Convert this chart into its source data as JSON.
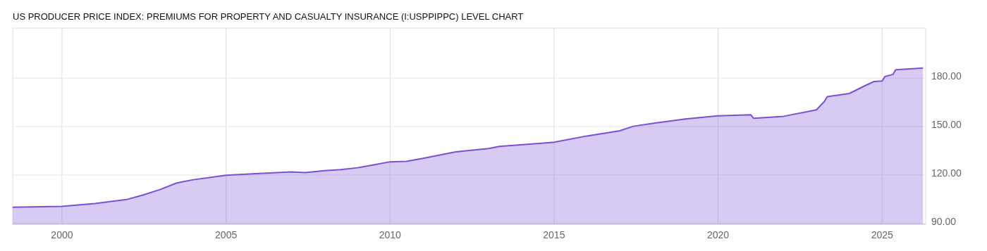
{
  "chart_data": {
    "type": "area",
    "title": "US PRODUCER PRICE INDEX: PREMIUMS FOR PROPERTY AND CASUALTY INSURANCE (I:USPPIPPC) LEVEL CHART",
    "x": [
      "1998-07",
      "2000-01",
      "2001-01",
      "2002-01",
      "2002-07",
      "2003-01",
      "2003-07",
      "2004-01",
      "2005-01",
      "2006-01",
      "2007-01",
      "2007-06",
      "2008-01",
      "2008-07",
      "2009-01",
      "2009-07",
      "2010-01",
      "2010-07",
      "2011-01",
      "2012-01",
      "2013-01",
      "2013-05",
      "2015-01",
      "2016-01",
      "2017-01",
      "2017-06",
      "2018-01",
      "2019-01",
      "2020-01",
      "2021-01",
      "2021-02",
      "2022-01",
      "2023-01",
      "2023-04",
      "2023-05",
      "2024-01",
      "2024-07",
      "2024-10",
      "2025-01",
      "2025-02",
      "2025-05",
      "2025-06",
      "2026-04"
    ],
    "series": [
      {
        "color": "#7b4fd6",
        "values": [
          100.1,
          100.6,
          102.3,
          105,
          107.8,
          111.1,
          115.1,
          117.1,
          119.9,
          121,
          121.9,
          121.5,
          122.7,
          123.4,
          124.5,
          126.3,
          128.2,
          128.5,
          130.3,
          134.4,
          136.4,
          137.7,
          140.3,
          144.2,
          147.4,
          150.2,
          152,
          154.7,
          156.7,
          157.3,
          155.1,
          156.4,
          160.4,
          165.7,
          168.5,
          170.5,
          175.5,
          177.9,
          178.2,
          181,
          182.3,
          185.2,
          186.3
        ]
      }
    ],
    "xlim": [
      "1998-07",
      "2026-05"
    ],
    "xticks": [
      {
        "value": "2000-01",
        "label": "2000"
      },
      {
        "value": "2005-01",
        "label": "2005"
      },
      {
        "value": "2010-01",
        "label": "2010"
      },
      {
        "value": "2015-01",
        "label": "2015"
      },
      {
        "value": "2020-01",
        "label": "2020"
      },
      {
        "value": "2025-01",
        "label": "2025"
      }
    ],
    "ylim": [
      89.5,
      211
    ],
    "yticks": [
      {
        "value": 90,
        "label": "90.00"
      },
      {
        "value": 120,
        "label": "120.00"
      },
      {
        "value": 150,
        "label": "150.00"
      },
      {
        "value": 180,
        "label": "180.00"
      }
    ],
    "grid": true
  }
}
